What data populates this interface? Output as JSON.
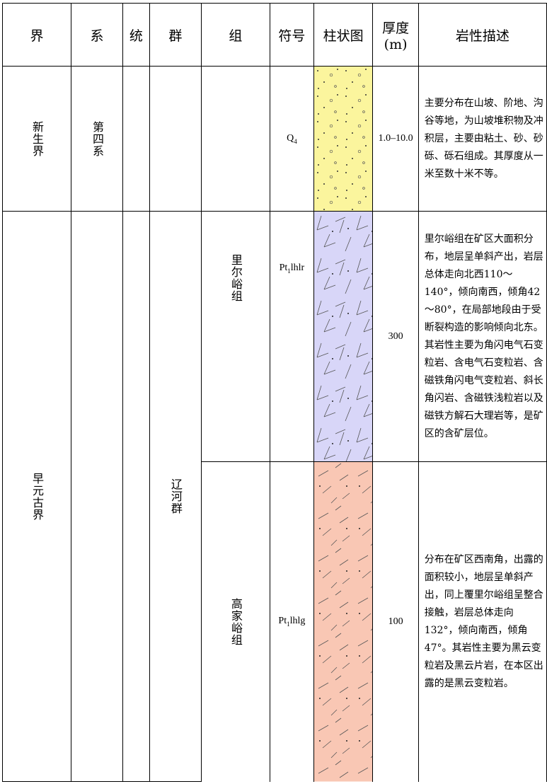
{
  "header": [
    "界",
    "系",
    "统",
    "群",
    "组",
    "符号",
    "柱状图",
    {
      "lines": [
        "厚度",
        "(m)"
      ]
    },
    "岩性描述"
  ],
  "rows": [
    {
      "era": "新生界",
      "system": "第四系",
      "formation": null,
      "symbol": {
        "base": "Q",
        "sub": "4"
      },
      "thickness": "1.0–10.0",
      "description": "主要分布在山坡、阶地、沟谷等地，为山坡堆积物及冲积层，主要由粘土、砂、砂砾、砾石组成。其厚度从一米至数十米不等。"
    },
    {
      "era": "早元古界",
      "group": "辽河群",
      "formation": "里尔峪组",
      "symbol": {
        "base": "Pt",
        "sub": "1",
        "rest": "lhlr"
      },
      "thickness": "300",
      "description": "里尔峪组在矿区大面积分布，地层呈单斜产出，岩层总体走向北西110～140°，倾向南西，倾角42～80°，在局部地段由于受断裂构造的影响倾向北东。其岩性主要为角闪电气石变粒岩、含电气石变粒岩、含磁铁角闪电气变粒岩、斜长角闪岩、含磁铁浅粒岩以及磁铁方解石大理岩等，是矿区的含矿层位。"
    },
    {
      "formation": "高家峪组",
      "symbol": {
        "base": "Pt",
        "sub": "1",
        "rest": "lhlg"
      },
      "thickness": "100",
      "description": "分布在矿区西南角，出露的面积较小，地层呈单斜产出，同上覆里尔峪组呈整合接触，岩层总体走向132°，倾向南西，倾角47°。其岩性主要为黑云变粒岩及黑云片岩，在本区出露的是黑云变粒岩。"
    }
  ]
}
